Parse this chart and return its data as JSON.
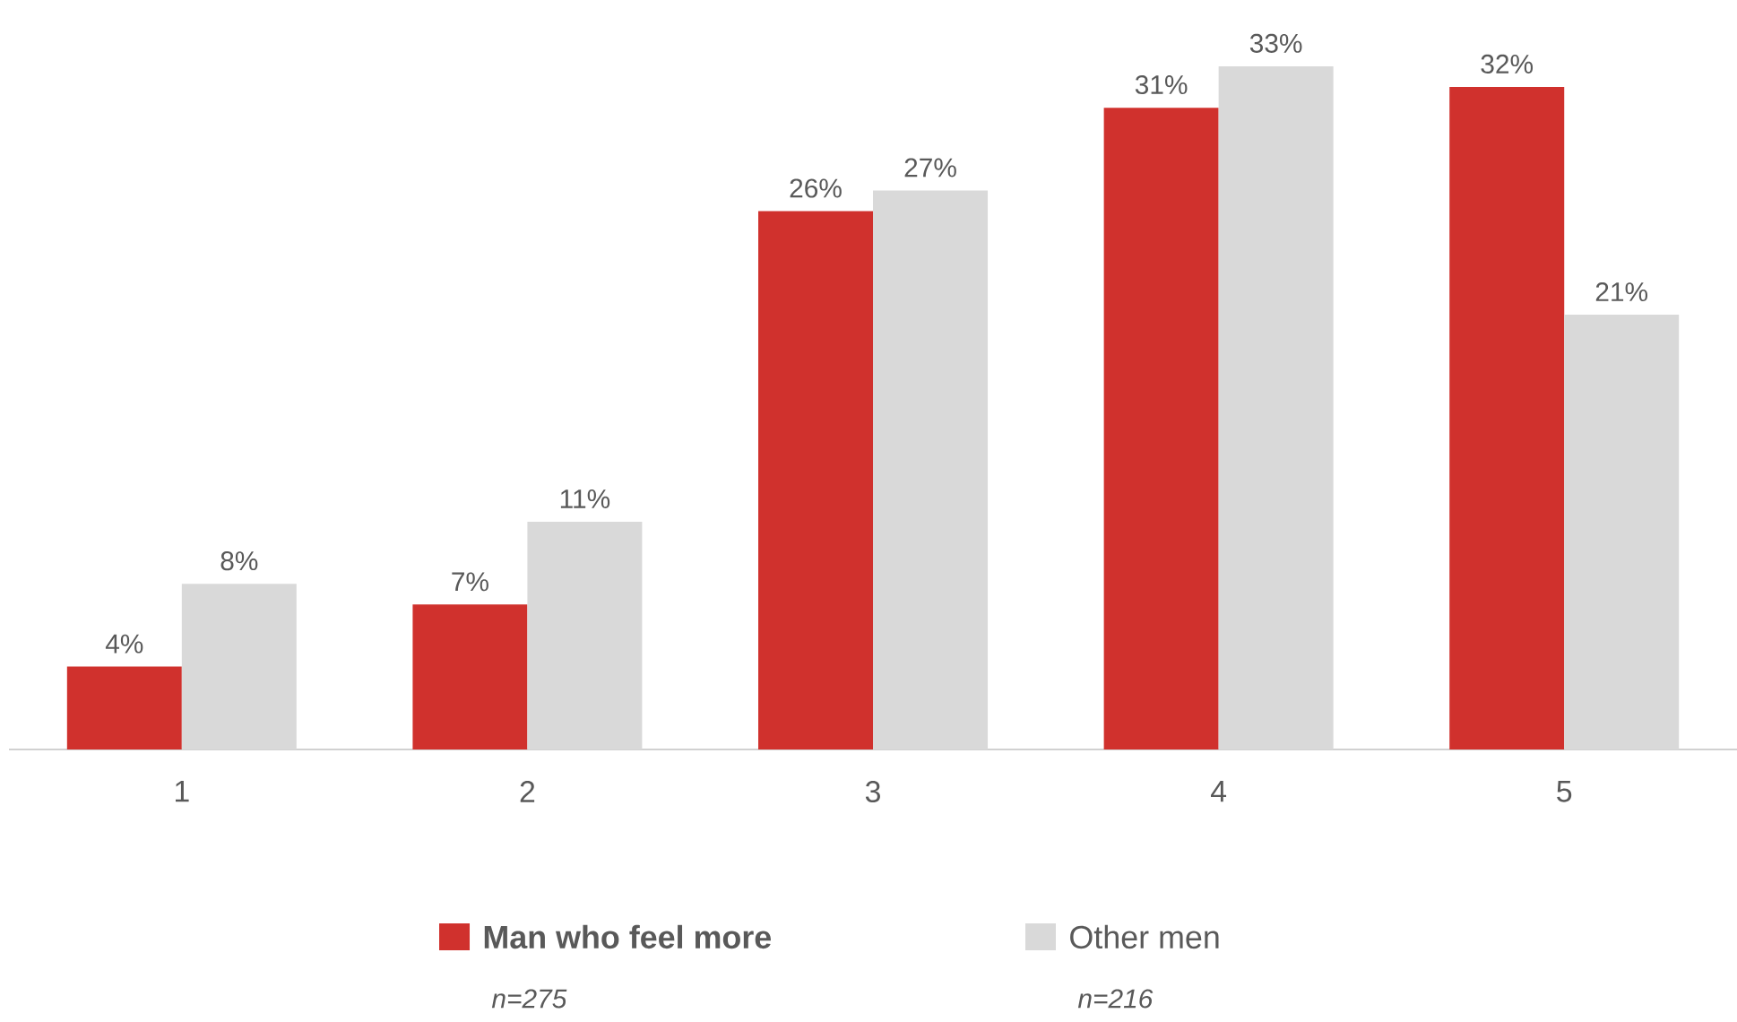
{
  "chart_data": {
    "type": "bar",
    "categories": [
      "1",
      "2",
      "3",
      "4",
      "5"
    ],
    "series": [
      {
        "name": "**Man who feel more**",
        "color": "#d0312d",
        "values": [
          4,
          7,
          26,
          31,
          32
        ],
        "value_labels": [
          "4%",
          "7%",
          "26%",
          "31%",
          "32%"
        ]
      },
      {
        "name": "Other men",
        "color": "#d9d9d9",
        "values": [
          8,
          11,
          27,
          33,
          21
        ],
        "value_labels": [
          "8%",
          "11%",
          "27%",
          "33%",
          "21%"
        ]
      }
    ],
    "tick_labels": "x",
    "legend": "bottom",
    "annotations": [
      "*n=275*",
      "*n=216*"
    ]
  }
}
